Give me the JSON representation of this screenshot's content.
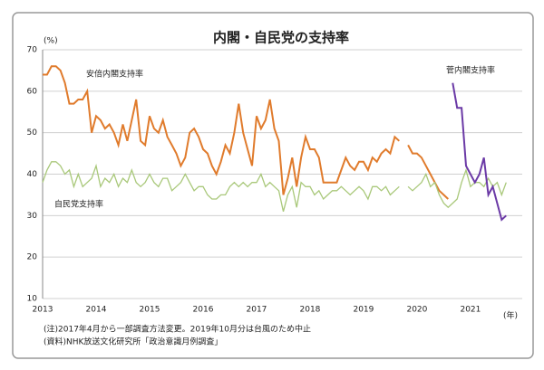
{
  "chart_data": {
    "type": "line",
    "title": "内閣・自民党の支持率",
    "y_unit": "(%)",
    "x_unit": "(年)",
    "categories": [
      "2013",
      null,
      null,
      null,
      null,
      null,
      null,
      null,
      null,
      null,
      null,
      null,
      "2014",
      null,
      null,
      null,
      null,
      null,
      null,
      null,
      null,
      null,
      null,
      null,
      "2015",
      null,
      null,
      null,
      null,
      null,
      null,
      null,
      null,
      null,
      null,
      null,
      "2016",
      null,
      null,
      null,
      null,
      null,
      null,
      null,
      null,
      null,
      null,
      null,
      "2017",
      null,
      null,
      null,
      null,
      null,
      null,
      null,
      null,
      null,
      null,
      null,
      "2018",
      null,
      null,
      null,
      null,
      null,
      null,
      null,
      null,
      null,
      null,
      null,
      "2019",
      null,
      null,
      null,
      null,
      null,
      null,
      null,
      null,
      null,
      null,
      null,
      "2020",
      null,
      null,
      null,
      null,
      null,
      null,
      null,
      null,
      null,
      null,
      null,
      "2021",
      null,
      null,
      null,
      null,
      null,
      null,
      null,
      null,
      null,
      null,
      null
    ],
    "series": [
      {
        "name": "安倍内閣支持率",
        "color": "#e07b2c",
        "values": [
          64,
          64,
          66,
          66,
          65,
          62,
          57,
          57,
          58,
          58,
          60,
          50,
          54,
          53,
          51,
          52,
          50,
          47,
          52,
          48,
          53,
          58,
          48,
          47,
          54,
          51,
          50,
          53,
          49,
          47,
          45,
          42,
          44,
          50,
          51,
          49,
          46,
          45,
          42,
          40,
          43,
          47,
          45,
          50,
          57,
          50,
          46,
          42,
          54,
          51,
          53,
          58,
          51,
          48,
          35,
          39,
          44,
          37,
          44,
          49,
          46,
          46,
          44,
          38,
          38,
          38,
          38,
          41,
          44,
          42,
          41,
          43,
          43,
          41,
          44,
          43,
          45,
          46,
          45,
          49,
          48,
          null,
          47,
          45,
          45,
          44,
          42,
          40,
          38,
          36,
          35,
          34,
          null,
          null,
          null,
          null,
          null,
          null,
          null,
          null,
          null,
          null,
          null,
          null,
          null,
          null,
          null,
          null
        ]
      },
      {
        "name": "自民党支持率",
        "color": "#a9c87a",
        "values": [
          38,
          41,
          43,
          43,
          42,
          40,
          41,
          37,
          40,
          37,
          38,
          39,
          42,
          37,
          39,
          38,
          40,
          37,
          39,
          38,
          41,
          38,
          37,
          38,
          40,
          38,
          37,
          39,
          39,
          36,
          37,
          38,
          40,
          38,
          36,
          37,
          37,
          35,
          34,
          34,
          35,
          35,
          37,
          38,
          37,
          38,
          37,
          38,
          38,
          40,
          37,
          38,
          37,
          36,
          31,
          35,
          37,
          32,
          38,
          37,
          37,
          35,
          36,
          34,
          35,
          36,
          36,
          37,
          36,
          35,
          36,
          37,
          36,
          34,
          37,
          37,
          36,
          37,
          35,
          36,
          37,
          null,
          37,
          36,
          37,
          38,
          40,
          37,
          38,
          35,
          33,
          32,
          33,
          34,
          38,
          41,
          37,
          38,
          38,
          37,
          39,
          37,
          38,
          35,
          38,
          null,
          null,
          null
        ]
      },
      {
        "name": "菅内閣支持率",
        "color": "#6b3aa6",
        "values": [
          null,
          null,
          null,
          null,
          null,
          null,
          null,
          null,
          null,
          null,
          null,
          null,
          null,
          null,
          null,
          null,
          null,
          null,
          null,
          null,
          null,
          null,
          null,
          null,
          null,
          null,
          null,
          null,
          null,
          null,
          null,
          null,
          null,
          null,
          null,
          null,
          null,
          null,
          null,
          null,
          null,
          null,
          null,
          null,
          null,
          null,
          null,
          null,
          null,
          null,
          null,
          null,
          null,
          null,
          null,
          null,
          null,
          null,
          null,
          null,
          null,
          null,
          null,
          null,
          null,
          null,
          null,
          null,
          null,
          null,
          null,
          null,
          null,
          null,
          null,
          null,
          null,
          null,
          null,
          null,
          null,
          null,
          null,
          null,
          null,
          null,
          null,
          null,
          null,
          null,
          null,
          null,
          62,
          56,
          56,
          42,
          40,
          38,
          40,
          44,
          35,
          37,
          33,
          29,
          30,
          null,
          null,
          null
        ]
      }
    ],
    "ylim": [
      10,
      70
    ],
    "yticks": [
      10,
      20,
      30,
      40,
      50,
      60,
      70
    ],
    "grid": true,
    "notes": [
      "(注)2017年4月から一部調査方法変更。2019年10月分は台風のため中止",
      "(資料)NHK放送文化研究所「政治意識月例調査」"
    ]
  }
}
